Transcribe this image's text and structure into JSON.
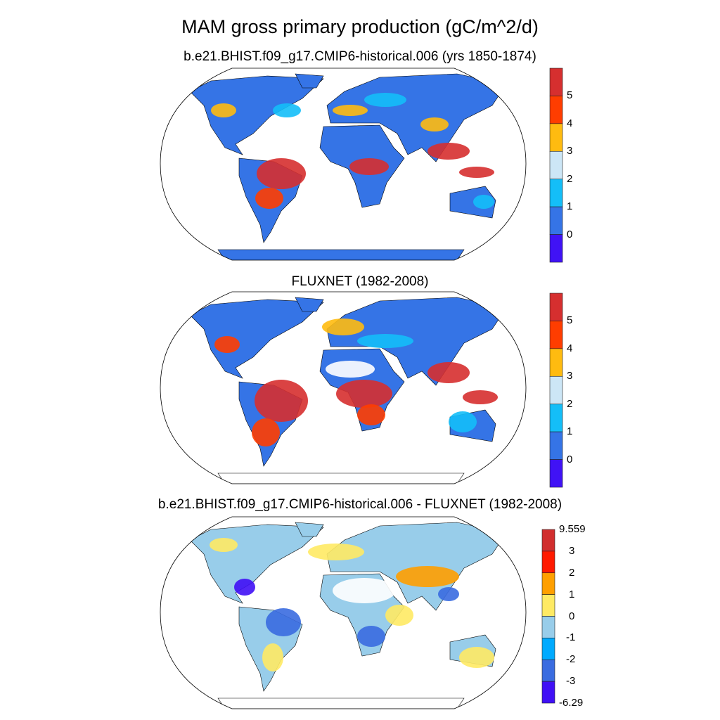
{
  "title": "MAM gross primary production (gC/m^2/d)",
  "panels": [
    {
      "title": "b.e21.BHIST.f09_g17.CMIP6-historical.006 (yrs 1850-1874)",
      "colorbar": {
        "labels": [
          "5",
          "4",
          "3",
          "2",
          "1",
          "0"
        ],
        "colors": [
          "#d62f2f",
          "#ff3d00",
          "#ffbb10",
          "#cce6f6",
          "#14bef8",
          "#3574e6",
          "#4012f5"
        ]
      },
      "land_color": "#3574e6",
      "antarctica_filled": true
    },
    {
      "title": "FLUXNET (1982-2008)",
      "colorbar": {
        "labels": [
          "5",
          "4",
          "3",
          "2",
          "1",
          "0"
        ],
        "colors": [
          "#d62f2f",
          "#ff3d00",
          "#ffbb10",
          "#cce6f6",
          "#14bef8",
          "#3574e6",
          "#4012f5"
        ]
      },
      "land_color": "#3574e6",
      "antarctica_filled": false
    },
    {
      "title": "b.e21.BHIST.f09_g17.CMIP6-historical.006 - FLUXNET (1982-2008)",
      "colorbar": {
        "labels": [
          "9.559",
          "3",
          "2",
          "1",
          "0",
          "-1",
          "-2",
          "-3",
          "-6.29"
        ],
        "colors": [
          "#d12e2e",
          "#ff1a00",
          "#ff9f00",
          "#ffea64",
          "#98cdea",
          "#00aaff",
          "#3a6ce0",
          "#4010f5"
        ]
      },
      "land_color": "#98cdea",
      "antarctica_filled": false
    }
  ]
}
